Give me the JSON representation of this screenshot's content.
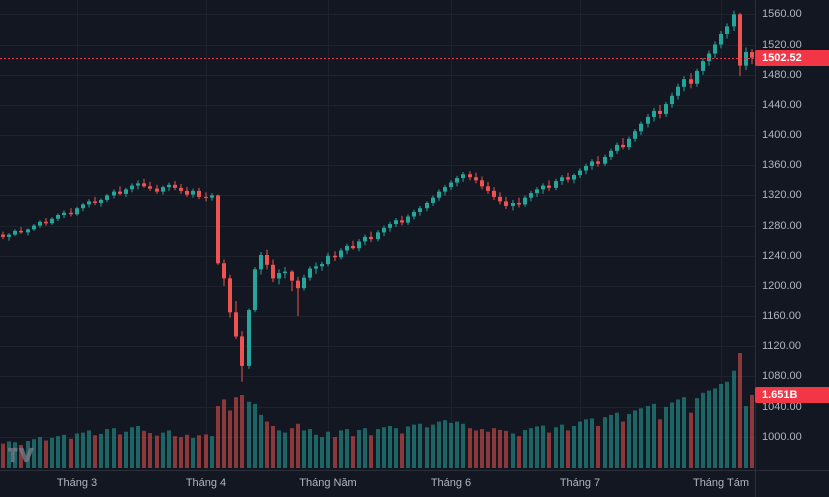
{
  "icons": {
    "tradingview_logo": "TV monogram"
  },
  "chart_data": {
    "type": "candlestick",
    "title": "",
    "xlabel": "",
    "ylabel": "",
    "grid": true,
    "ylim": [
      956,
      1579
    ],
    "y_tick_labels": [
      "1560.00",
      "1520.00",
      "1480.00",
      "1440.00",
      "1400.00",
      "1360.00",
      "1320.00",
      "1280.00",
      "1240.00",
      "1200.00",
      "1160.00",
      "1120.00",
      "1080.00",
      "1040.00",
      "1000.00"
    ],
    "x_tick_labels": [
      "Tháng 3",
      "Tháng 4",
      "Tháng Năm",
      "Tháng 6",
      "Tháng 7",
      "Tháng Tám"
    ],
    "x_tick_indices": [
      12,
      33,
      53,
      73,
      94,
      117
    ],
    "last_price": 1502.52,
    "last_price_label": "1502.52",
    "volume_label": "1.651B",
    "volume_max_billions": 2.6,
    "colors": {
      "background": "#131722",
      "grid": "#1e222d",
      "axis_line": "#2a2e39",
      "axis_text": "#b2b5be",
      "up": "#26a69a",
      "down": "#ef5350",
      "up_volume": "rgba(38,166,154,0.55)",
      "down_volume": "rgba(239,83,80,0.55)",
      "last_price": "#f23645",
      "badge_bg": "#f23645",
      "logo": "#787b86"
    },
    "candle_schema": [
      "open",
      "high",
      "low",
      "close",
      "volume_billions"
    ],
    "candles": [
      [
        1268,
        1272,
        1262,
        1265,
        0.55
      ],
      [
        1265,
        1270,
        1260,
        1268,
        0.6
      ],
      [
        1268,
        1275,
        1266,
        1273,
        0.58
      ],
      [
        1273,
        1278,
        1269,
        1271,
        0.52
      ],
      [
        1271,
        1276,
        1267,
        1275,
        0.61
      ],
      [
        1275,
        1282,
        1273,
        1280,
        0.65
      ],
      [
        1280,
        1287,
        1277,
        1285,
        0.7
      ],
      [
        1285,
        1290,
        1280,
        1283,
        0.62
      ],
      [
        1283,
        1291,
        1281,
        1289,
        0.68
      ],
      [
        1289,
        1296,
        1286,
        1294,
        0.72
      ],
      [
        1294,
        1300,
        1290,
        1297,
        0.75
      ],
      [
        1297,
        1303,
        1292,
        1295,
        0.66
      ],
      [
        1295,
        1305,
        1293,
        1303,
        0.78
      ],
      [
        1303,
        1310,
        1299,
        1308,
        0.8
      ],
      [
        1308,
        1315,
        1304,
        1312,
        0.85
      ],
      [
        1312,
        1318,
        1307,
        1310,
        0.74
      ],
      [
        1310,
        1316,
        1305,
        1314,
        0.77
      ],
      [
        1314,
        1322,
        1311,
        1320,
        0.88
      ],
      [
        1320,
        1328,
        1316,
        1325,
        0.9
      ],
      [
        1325,
        1332,
        1320,
        1322,
        0.76
      ],
      [
        1322,
        1330,
        1318,
        1328,
        0.82
      ],
      [
        1328,
        1336,
        1324,
        1333,
        0.92
      ],
      [
        1333,
        1340,
        1328,
        1336,
        0.95
      ],
      [
        1336,
        1342,
        1330,
        1332,
        0.84
      ],
      [
        1332,
        1338,
        1326,
        1329,
        0.79
      ],
      [
        1329,
        1334,
        1322,
        1325,
        0.73
      ],
      [
        1325,
        1333,
        1321,
        1331,
        0.8
      ],
      [
        1331,
        1337,
        1326,
        1334,
        0.85
      ],
      [
        1334,
        1339,
        1327,
        1330,
        0.72
      ],
      [
        1330,
        1335,
        1322,
        1326,
        0.7
      ],
      [
        1326,
        1331,
        1318,
        1321,
        0.75
      ],
      [
        1321,
        1329,
        1317,
        1326,
        0.68
      ],
      [
        1326,
        1330,
        1315,
        1318,
        0.74
      ],
      [
        1318,
        1324,
        1312,
        1317,
        0.76
      ],
      [
        1317,
        1323,
        1313,
        1320,
        0.72
      ],
      [
        1320,
        1321,
        1228,
        1230,
        1.4
      ],
      [
        1230,
        1235,
        1200,
        1210,
        1.55
      ],
      [
        1210,
        1215,
        1158,
        1165,
        1.3
      ],
      [
        1165,
        1180,
        1130,
        1133,
        1.6
      ],
      [
        1133,
        1140,
        1073,
        1094,
        1.65
      ],
      [
        1094,
        1170,
        1090,
        1168,
        1.5
      ],
      [
        1168,
        1225,
        1165,
        1222,
        1.45
      ],
      [
        1222,
        1245,
        1215,
        1241,
        1.2
      ],
      [
        1241,
        1248,
        1222,
        1228,
        1.05
      ],
      [
        1228,
        1235,
        1205,
        1210,
        0.95
      ],
      [
        1210,
        1222,
        1202,
        1217,
        0.85
      ],
      [
        1217,
        1225,
        1210,
        1219,
        0.8
      ],
      [
        1219,
        1221,
        1193,
        1207,
        0.9
      ],
      [
        1207,
        1212,
        1160,
        1197,
        1.0
      ],
      [
        1197,
        1215,
        1194,
        1211,
        0.85
      ],
      [
        1211,
        1226,
        1207,
        1223,
        0.88
      ],
      [
        1223,
        1231,
        1216,
        1226,
        0.75
      ],
      [
        1226,
        1232,
        1220,
        1229,
        0.7
      ],
      [
        1229,
        1244,
        1226,
        1240,
        0.82
      ],
      [
        1240,
        1246,
        1233,
        1238,
        0.7
      ],
      [
        1238,
        1250,
        1235,
        1247,
        0.85
      ],
      [
        1247,
        1256,
        1242,
        1253,
        0.88
      ],
      [
        1253,
        1260,
        1248,
        1250,
        0.72
      ],
      [
        1250,
        1262,
        1246,
        1259,
        0.86
      ],
      [
        1259,
        1268,
        1254,
        1265,
        0.9
      ],
      [
        1265,
        1272,
        1258,
        1262,
        0.74
      ],
      [
        1262,
        1274,
        1259,
        1271,
        0.88
      ],
      [
        1271,
        1280,
        1266,
        1277,
        0.92
      ],
      [
        1277,
        1285,
        1272,
        1282,
        0.95
      ],
      [
        1282,
        1290,
        1278,
        1287,
        0.9
      ],
      [
        1287,
        1293,
        1280,
        1284,
        0.78
      ],
      [
        1284,
        1295,
        1281,
        1292,
        0.94
      ],
      [
        1292,
        1301,
        1288,
        1298,
        0.98
      ],
      [
        1298,
        1306,
        1293,
        1303,
        1.0
      ],
      [
        1303,
        1312,
        1299,
        1310,
        0.92
      ],
      [
        1310,
        1320,
        1306,
        1317,
        0.98
      ],
      [
        1317,
        1328,
        1313,
        1325,
        1.05
      ],
      [
        1325,
        1334,
        1320,
        1331,
        1.08
      ],
      [
        1331,
        1340,
        1327,
        1337,
        1.02
      ],
      [
        1337,
        1346,
        1332,
        1343,
        1.05
      ],
      [
        1343,
        1351,
        1338,
        1348,
        1.0
      ],
      [
        1348,
        1352,
        1340,
        1344,
        0.9
      ],
      [
        1344,
        1350,
        1336,
        1340,
        0.85
      ],
      [
        1340,
        1345,
        1328,
        1332,
        0.88
      ],
      [
        1332,
        1338,
        1322,
        1326,
        0.82
      ],
      [
        1326,
        1331,
        1314,
        1318,
        0.9
      ],
      [
        1318,
        1324,
        1308,
        1312,
        0.86
      ],
      [
        1312,
        1318,
        1302,
        1306,
        0.84
      ],
      [
        1306,
        1314,
        1300,
        1310,
        0.78
      ],
      [
        1310,
        1317,
        1304,
        1308,
        0.72
      ],
      [
        1308,
        1320,
        1305,
        1317,
        0.86
      ],
      [
        1317,
        1326,
        1312,
        1323,
        0.9
      ],
      [
        1323,
        1331,
        1318,
        1328,
        0.94
      ],
      [
        1328,
        1336,
        1322,
        1333,
        0.96
      ],
      [
        1333,
        1340,
        1326,
        1330,
        0.8
      ],
      [
        1330,
        1342,
        1327,
        1339,
        0.92
      ],
      [
        1339,
        1347,
        1334,
        1344,
        0.98
      ],
      [
        1344,
        1350,
        1337,
        1341,
        0.85
      ],
      [
        1341,
        1349,
        1336,
        1347,
        0.95
      ],
      [
        1347,
        1356,
        1343,
        1353,
        1.05
      ],
      [
        1353,
        1362,
        1348,
        1359,
        1.1
      ],
      [
        1359,
        1368,
        1354,
        1365,
        1.12
      ],
      [
        1365,
        1372,
        1358,
        1362,
        0.95
      ],
      [
        1362,
        1374,
        1359,
        1371,
        1.15
      ],
      [
        1371,
        1382,
        1367,
        1379,
        1.2
      ],
      [
        1379,
        1390,
        1375,
        1387,
        1.25
      ],
      [
        1387,
        1396,
        1381,
        1384,
        1.05
      ],
      [
        1384,
        1398,
        1380,
        1395,
        1.22
      ],
      [
        1395,
        1408,
        1391,
        1405,
        1.3
      ],
      [
        1405,
        1418,
        1400,
        1415,
        1.35
      ],
      [
        1415,
        1428,
        1410,
        1424,
        1.4
      ],
      [
        1424,
        1436,
        1418,
        1432,
        1.45
      ],
      [
        1432,
        1440,
        1422,
        1428,
        1.1
      ],
      [
        1428,
        1444,
        1424,
        1441,
        1.38
      ],
      [
        1441,
        1456,
        1436,
        1452,
        1.48
      ],
      [
        1452,
        1468,
        1447,
        1464,
        1.55
      ],
      [
        1464,
        1478,
        1458,
        1474,
        1.6
      ],
      [
        1474,
        1482,
        1462,
        1468,
        1.25
      ],
      [
        1468,
        1488,
        1464,
        1485,
        1.58
      ],
      [
        1485,
        1502,
        1480,
        1498,
        1.7
      ],
      [
        1498,
        1512,
        1492,
        1508,
        1.75
      ],
      [
        1508,
        1524,
        1502,
        1520,
        1.8
      ],
      [
        1520,
        1538,
        1515,
        1534,
        1.9
      ],
      [
        1534,
        1548,
        1528,
        1544,
        1.95
      ],
      [
        1544,
        1565,
        1538,
        1560,
        2.2
      ],
      [
        1560,
        1562,
        1478,
        1492,
        2.6
      ],
      [
        1492,
        1516,
        1486,
        1510,
        1.4
      ],
      [
        1510,
        1514,
        1494,
        1502.52,
        1.651
      ]
    ]
  }
}
